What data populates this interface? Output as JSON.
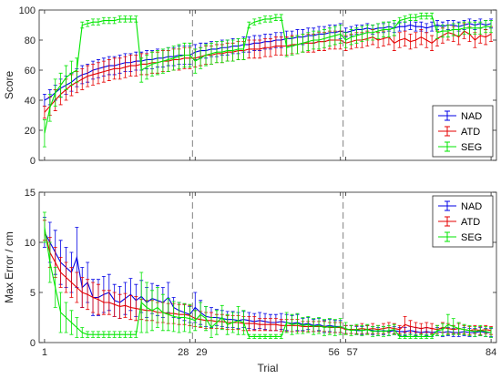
{
  "figure": {
    "xlabel": "Trial",
    "x_ticks": [
      1,
      28,
      29,
      56,
      57,
      84
    ],
    "session_breaks": [
      28.5,
      56.5
    ],
    "colors": {
      "NAD": "#0000e6",
      "ATD": "#e60000",
      "SEG": "#00e600",
      "axis": "#262626",
      "separator": "#808080"
    }
  },
  "chart_data": [
    {
      "type": "line",
      "title": "",
      "xlabel": "",
      "ylabel": "Score",
      "xlim": [
        0,
        85
      ],
      "ylim": [
        0,
        100
      ],
      "yticks": [
        0,
        20,
        40,
        60,
        80,
        100
      ],
      "grid": false,
      "legend": "bottom-right",
      "error_bars": true,
      "series": [
        {
          "name": "NAD",
          "y": [
            40,
            42,
            45,
            48,
            50,
            52,
            55,
            57,
            58,
            60,
            61,
            62,
            63,
            63,
            64,
            65,
            65,
            66,
            66,
            67,
            67,
            68,
            68,
            69,
            69,
            70,
            70,
            70,
            72,
            73,
            73,
            74,
            74,
            75,
            75,
            76,
            76,
            77,
            77,
            78,
            78,
            79,
            79,
            80,
            80,
            81,
            81,
            82,
            82,
            83,
            83,
            84,
            84,
            85,
            85,
            86,
            85,
            86,
            87,
            87,
            88,
            87,
            88,
            88,
            89,
            88,
            89,
            89,
            90,
            89,
            89,
            88,
            89,
            90,
            89,
            90,
            90,
            89,
            90,
            91,
            90,
            91,
            90,
            91
          ],
          "err": [
            4,
            5,
            5,
            6,
            6,
            6,
            6,
            6,
            6,
            6,
            6,
            6,
            6,
            6,
            6,
            6,
            6,
            6,
            6,
            6,
            6,
            6,
            6,
            6,
            6,
            6,
            6,
            6,
            5,
            5,
            5,
            5,
            5,
            5,
            5,
            5,
            5,
            5,
            5,
            5,
            5,
            5,
            5,
            5,
            5,
            5,
            5,
            5,
            5,
            5,
            5,
            5,
            5,
            5,
            5,
            5,
            3,
            3,
            3,
            3,
            3,
            3,
            3,
            3,
            3,
            3,
            3,
            3,
            3,
            3,
            3,
            3,
            3,
            3,
            3,
            3,
            3,
            3,
            3,
            3,
            3,
            3,
            3,
            3
          ]
        },
        {
          "name": "ATD",
          "y": [
            32,
            36,
            40,
            44,
            47,
            50,
            52,
            54,
            56,
            57,
            58,
            59,
            60,
            61,
            61,
            62,
            63,
            63,
            64,
            64,
            65,
            65,
            66,
            66,
            67,
            67,
            68,
            68,
            68,
            69,
            70,
            70,
            71,
            71,
            72,
            72,
            73,
            73,
            74,
            74,
            74,
            75,
            75,
            76,
            76,
            76,
            77,
            77,
            78,
            78,
            78,
            79,
            79,
            80,
            80,
            80,
            78,
            79,
            80,
            80,
            81,
            82,
            80,
            81,
            82,
            78,
            80,
            81,
            79,
            80,
            82,
            80,
            78,
            81,
            83,
            85,
            84,
            82,
            86,
            84,
            80,
            83,
            82,
            84
          ],
          "err": [
            4,
            6,
            7,
            7,
            7,
            7,
            7,
            7,
            7,
            7,
            7,
            7,
            7,
            7,
            7,
            7,
            7,
            7,
            7,
            7,
            7,
            7,
            7,
            7,
            7,
            7,
            7,
            7,
            6,
            6,
            6,
            6,
            6,
            6,
            6,
            6,
            6,
            6,
            6,
            6,
            6,
            6,
            6,
            6,
            6,
            6,
            6,
            6,
            6,
            6,
            6,
            6,
            6,
            6,
            6,
            6,
            5,
            5,
            5,
            5,
            5,
            5,
            5,
            5,
            5,
            5,
            5,
            5,
            5,
            5,
            5,
            5,
            5,
            5,
            5,
            5,
            5,
            5,
            5,
            5,
            5,
            5,
            5,
            5
          ]
        },
        {
          "name": "SEG",
          "y": [
            18,
            35,
            45,
            50,
            55,
            58,
            60,
            90,
            91,
            92,
            92,
            93,
            93,
            93,
            94,
            94,
            94,
            94,
            60,
            62,
            64,
            65,
            66,
            67,
            68,
            69,
            70,
            70,
            66,
            68,
            70,
            71,
            72,
            72,
            73,
            73,
            74,
            74,
            90,
            92,
            93,
            94,
            94,
            95,
            95,
            75,
            76,
            77,
            78,
            79,
            80,
            80,
            81,
            82,
            83,
            84,
            80,
            82,
            83,
            84,
            85,
            85,
            86,
            87,
            87,
            88,
            93,
            94,
            95,
            95,
            96,
            96,
            96,
            85,
            86,
            86,
            87,
            87,
            88,
            88,
            88,
            88,
            89,
            89
          ],
          "err": [
            9,
            9,
            9,
            8,
            8,
            8,
            8,
            2,
            2,
            2,
            2,
            2,
            2,
            2,
            2,
            2,
            2,
            2,
            8,
            8,
            8,
            8,
            8,
            8,
            8,
            8,
            8,
            8,
            8,
            7,
            7,
            7,
            7,
            7,
            7,
            7,
            7,
            7,
            2,
            2,
            2,
            2,
            2,
            2,
            2,
            6,
            6,
            6,
            6,
            6,
            6,
            6,
            6,
            6,
            6,
            6,
            5,
            5,
            5,
            5,
            5,
            5,
            5,
            5,
            5,
            5,
            2,
            2,
            2,
            2,
            2,
            2,
            2,
            4,
            4,
            4,
            4,
            4,
            4,
            4,
            4,
            4,
            4,
            4
          ]
        }
      ]
    },
    {
      "type": "line",
      "title": "",
      "xlabel": "Trial",
      "ylabel": "Max Error / cm",
      "xlim": [
        0,
        85
      ],
      "ylim": [
        0,
        15
      ],
      "yticks": [
        0,
        5,
        10,
        15
      ],
      "grid": false,
      "legend": "top-right",
      "error_bars": true,
      "series": [
        {
          "name": "NAD",
          "y": [
            11.0,
            10.0,
            9.0,
            8.0,
            7.5,
            7.0,
            8.5,
            5.5,
            6.0,
            4.5,
            4.5,
            4.8,
            5.0,
            4.2,
            4.0,
            4.4,
            4.8,
            4.2,
            4.6,
            4.0,
            4.4,
            4.2,
            4.0,
            4.5,
            3.5,
            3.2,
            3.0,
            2.8,
            3.5,
            3.0,
            2.6,
            2.5,
            2.5,
            2.4,
            2.3,
            2.3,
            2.2,
            2.3,
            2.2,
            2.1,
            2.2,
            2.1,
            2.0,
            2.0,
            2.1,
            2.0,
            1.9,
            2.0,
            1.8,
            1.9,
            1.7,
            1.8,
            1.6,
            1.7,
            1.6,
            1.6,
            1.3,
            1.3,
            1.2,
            1.2,
            1.3,
            1.2,
            1.1,
            1.2,
            1.1,
            1.2,
            1.1,
            1.1,
            1.2,
            1.1,
            1.0,
            1.1,
            1.0,
            1.1,
            1.0,
            1.1,
            1.0,
            1.0,
            1.1,
            1.0,
            1.0,
            1.1,
            1.0,
            1.0
          ],
          "err": [
            1.5,
            2.0,
            2.2,
            2.2,
            2.0,
            2.0,
            3.0,
            2.0,
            2.0,
            1.8,
            1.8,
            1.8,
            1.8,
            1.6,
            1.6,
            1.6,
            1.6,
            1.6,
            1.6,
            1.5,
            1.5,
            1.5,
            1.5,
            1.5,
            1.0,
            0.8,
            0.8,
            0.8,
            1.5,
            1.2,
            1.0,
            1.0,
            0.8,
            0.8,
            0.8,
            0.8,
            0.8,
            0.8,
            0.8,
            0.8,
            0.8,
            0.8,
            0.8,
            0.8,
            0.8,
            0.8,
            0.8,
            0.8,
            0.6,
            0.6,
            0.6,
            0.6,
            0.6,
            0.6,
            0.6,
            0.6,
            0.4,
            0.4,
            0.4,
            0.4,
            0.4,
            0.4,
            0.4,
            0.4,
            0.4,
            0.4,
            0.4,
            0.4,
            0.4,
            0.4,
            0.4,
            0.4,
            0.4,
            0.4,
            0.4,
            0.4,
            0.4,
            0.4,
            0.4,
            0.4,
            0.4,
            0.4,
            0.4,
            0.4
          ]
        },
        {
          "name": "ATD",
          "y": [
            11.2,
            9.0,
            8.0,
            7.0,
            6.5,
            6.0,
            5.5,
            5.0,
            4.8,
            4.5,
            4.3,
            4.0,
            4.0,
            3.8,
            3.6,
            3.7,
            3.5,
            3.4,
            3.3,
            3.2,
            3.2,
            3.0,
            3.0,
            2.9,
            2.9,
            2.8,
            2.8,
            2.7,
            2.4,
            2.3,
            2.2,
            2.2,
            2.1,
            2.1,
            2.0,
            2.0,
            2.0,
            1.9,
            1.9,
            1.9,
            1.8,
            1.8,
            1.8,
            1.8,
            1.7,
            1.7,
            1.7,
            1.7,
            1.6,
            1.6,
            1.6,
            1.6,
            1.6,
            1.5,
            1.5,
            1.5,
            1.3,
            1.3,
            1.3,
            1.4,
            1.3,
            1.4,
            1.3,
            1.4,
            1.5,
            1.4,
            1.3,
            1.8,
            1.6,
            1.5,
            1.4,
            1.5,
            1.4,
            1.3,
            1.5,
            1.4,
            1.3,
            1.4,
            1.3,
            1.2,
            1.3,
            1.2,
            1.3,
            1.2
          ],
          "err": [
            1.0,
            1.5,
            1.5,
            1.5,
            1.5,
            1.5,
            1.5,
            1.5,
            1.5,
            1.5,
            1.5,
            1.2,
            1.2,
            1.2,
            1.2,
            1.2,
            1.2,
            1.2,
            1.0,
            1.0,
            1.0,
            1.0,
            1.0,
            1.0,
            1.0,
            1.0,
            1.0,
            1.0,
            0.8,
            0.8,
            0.8,
            0.8,
            0.7,
            0.7,
            0.7,
            0.7,
            0.7,
            0.7,
            0.7,
            0.7,
            0.6,
            0.6,
            0.6,
            0.6,
            0.6,
            0.6,
            0.6,
            0.6,
            0.5,
            0.5,
            0.5,
            0.5,
            0.5,
            0.5,
            0.5,
            0.5,
            0.4,
            0.4,
            0.4,
            0.5,
            0.4,
            0.5,
            0.4,
            0.5,
            0.5,
            0.5,
            0.4,
            0.8,
            0.6,
            0.5,
            0.5,
            0.5,
            0.5,
            0.4,
            0.5,
            0.5,
            0.4,
            0.5,
            0.4,
            0.4,
            0.4,
            0.4,
            0.4,
            0.4
          ]
        },
        {
          "name": "SEG",
          "y": [
            11.5,
            8.0,
            5.5,
            3.0,
            2.5,
            2.0,
            1.5,
            1.0,
            0.8,
            0.8,
            0.8,
            0.8,
            0.8,
            0.8,
            0.8,
            0.8,
            0.8,
            0.8,
            4.0,
            3.5,
            3.2,
            3.5,
            3.0,
            2.8,
            2.6,
            2.5,
            2.5,
            2.4,
            2.2,
            2.8,
            2.4,
            1.5,
            2.0,
            2.5,
            1.8,
            2.0,
            2.2,
            2.0,
            0.6,
            0.6,
            0.6,
            0.6,
            0.6,
            0.6,
            0.6,
            2.0,
            1.8,
            1.9,
            1.7,
            1.8,
            1.6,
            1.7,
            1.5,
            1.6,
            1.5,
            1.6,
            1.4,
            1.2,
            1.3,
            1.2,
            1.3,
            1.1,
            1.2,
            1.1,
            1.2,
            1.3,
            0.6,
            0.6,
            0.6,
            0.6,
            0.6,
            0.6,
            0.6,
            1.2,
            1.3,
            1.8,
            1.6,
            1.4,
            1.3,
            1.2,
            1.1,
            1.2,
            1.1,
            1.0
          ],
          "err": [
            1.5,
            2.0,
            2.0,
            2.0,
            1.5,
            1.2,
            1.0,
            0.5,
            0.3,
            0.3,
            0.3,
            0.3,
            0.3,
            0.3,
            0.3,
            0.3,
            0.3,
            0.3,
            3.0,
            2.5,
            2.0,
            2.0,
            1.8,
            1.6,
            1.5,
            1.5,
            1.4,
            1.4,
            1.0,
            1.2,
            1.2,
            1.0,
            1.2,
            1.2,
            1.0,
            1.0,
            1.4,
            1.2,
            0.2,
            0.2,
            0.2,
            0.2,
            0.2,
            0.2,
            0.2,
            1.0,
            1.0,
            1.0,
            0.8,
            0.8,
            0.8,
            0.8,
            0.8,
            0.8,
            0.8,
            0.8,
            0.6,
            0.5,
            0.5,
            0.5,
            0.5,
            0.5,
            0.5,
            0.5,
            0.5,
            0.5,
            0.2,
            0.2,
            0.2,
            0.2,
            0.2,
            0.2,
            0.2,
            0.5,
            0.6,
            1.0,
            0.8,
            0.6,
            0.5,
            0.5,
            0.5,
            0.5,
            0.5,
            0.5
          ]
        }
      ]
    }
  ]
}
